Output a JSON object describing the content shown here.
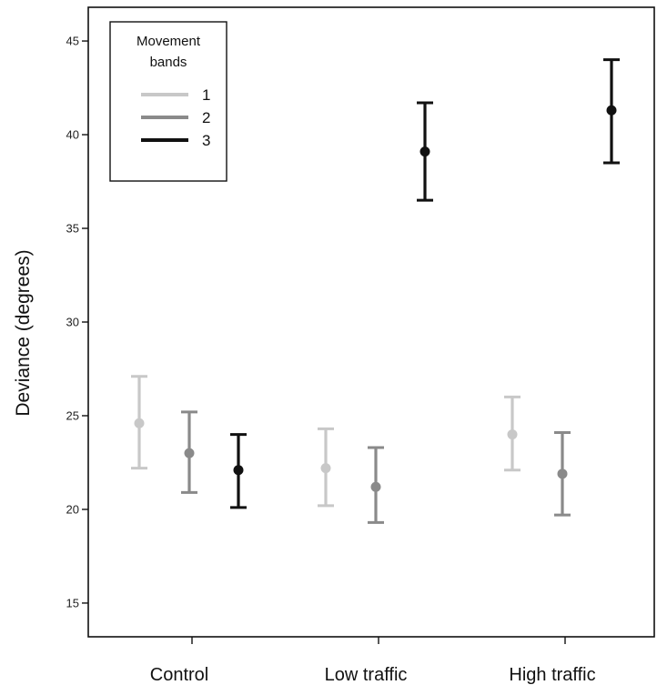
{
  "chart_data": {
    "type": "scatter",
    "title": "",
    "xlabel": "",
    "ylabel": "Deviance (degrees)",
    "categories": [
      "Control",
      "Low traffic",
      "High traffic"
    ],
    "ylim": [
      13.2,
      46.8
    ],
    "yticks": [
      15,
      20,
      25,
      30,
      35,
      40,
      45
    ],
    "grid": false,
    "legend": {
      "title_lines": [
        "Movement",
        "bands"
      ],
      "placement": "top-left"
    },
    "series": [
      {
        "name": "1",
        "color": "#c8c8c8",
        "mean": [
          24.6,
          22.2,
          24.0
        ],
        "lower": [
          22.2,
          20.2,
          22.1
        ],
        "upper": [
          27.1,
          24.3,
          26.0
        ]
      },
      {
        "name": "2",
        "color": "#8a8a8a",
        "mean": [
          23.0,
          21.2,
          21.9
        ],
        "lower": [
          20.9,
          19.3,
          19.7
        ],
        "upper": [
          25.2,
          23.3,
          24.1
        ]
      },
      {
        "name": "3",
        "color": "#111111",
        "mean": [
          22.1,
          39.1,
          41.3
        ],
        "lower": [
          20.1,
          36.5,
          38.5
        ],
        "upper": [
          24.0,
          41.7,
          44.0
        ]
      }
    ]
  }
}
